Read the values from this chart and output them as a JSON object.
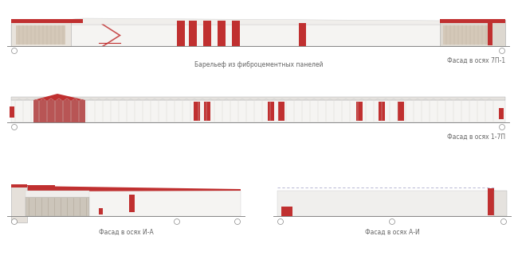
{
  "bg_color": "#ffffff",
  "facade_white": "#f5f4f2",
  "facade_warm": "#edeae6",
  "facade_tan": "#ddd8d0",
  "facade_beige": "#d4cfc8",
  "red_color": "#c03030",
  "light_red": "#c87070",
  "medium_red": "#b85555",
  "roof_gray": "#e8e5e0",
  "roof_light": "#f0eeec",
  "line_color": "#999999",
  "text_color": "#666666",
  "label1": "Фасад в осях 7П-1",
  "label2": "Фасад в осях 1-7П",
  "label3": "Фасад в осях И-А",
  "label4": "Фасад в осях А-И",
  "mid_label": "Барельеф из фиброцементных панелей",
  "font_size": 5.5
}
